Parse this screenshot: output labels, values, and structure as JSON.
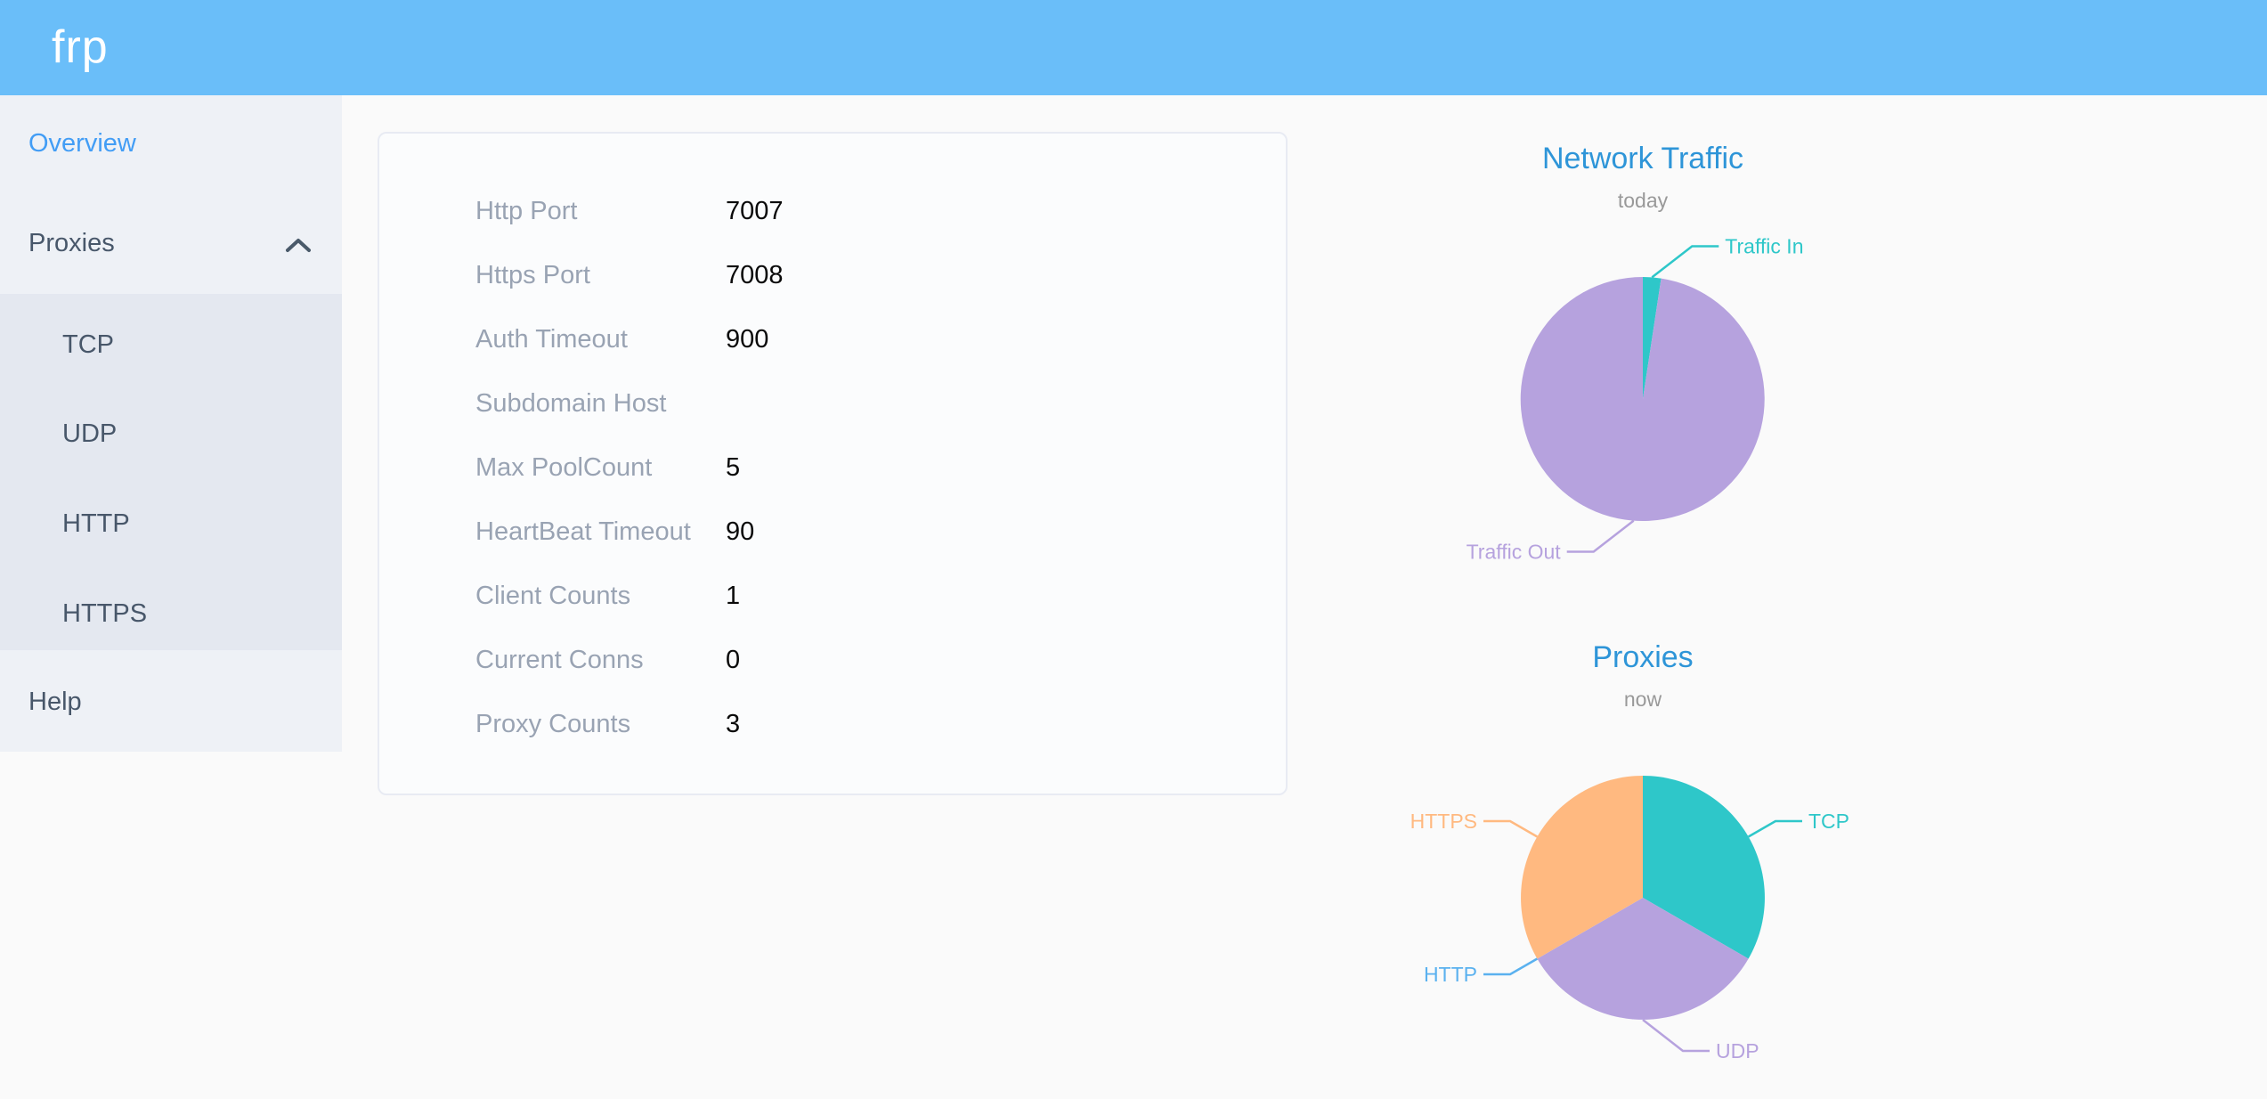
{
  "header": {
    "logo_text": "frp"
  },
  "sidebar": {
    "overview_label": "Overview",
    "proxies_label": "Proxies",
    "submenu": [
      {
        "label": "TCP"
      },
      {
        "label": "UDP"
      },
      {
        "label": "HTTP"
      },
      {
        "label": "HTTPS"
      }
    ],
    "help_label": "Help"
  },
  "server_info": {
    "rows": [
      {
        "label": "Http Port",
        "value": "7007"
      },
      {
        "label": "Https Port",
        "value": "7008"
      },
      {
        "label": "Auth Timeout",
        "value": "900"
      },
      {
        "label": "Subdomain Host",
        "value": ""
      },
      {
        "label": "Max PoolCount",
        "value": "5"
      },
      {
        "label": "HeartBeat Timeout",
        "value": "90"
      },
      {
        "label": "Client Counts",
        "value": "1"
      },
      {
        "label": "Current Conns",
        "value": "0"
      },
      {
        "label": "Proxy Counts",
        "value": "3"
      }
    ]
  },
  "chart_data": [
    {
      "type": "pie",
      "title": "Network Traffic",
      "subtitle": "today",
      "legend_position": "callout-labels",
      "series": [
        {
          "name": "Traffic In",
          "value": 2.4,
          "color": "#2ec7c9"
        },
        {
          "name": "Traffic Out",
          "value": 97.6,
          "color": "#b6a2de"
        }
      ],
      "note": "values are percent shares estimated from slice angles"
    },
    {
      "type": "pie",
      "title": "Proxies",
      "subtitle": "now",
      "legend_position": "callout-labels",
      "series": [
        {
          "name": "TCP",
          "value": 1,
          "color": "#2ec7c9"
        },
        {
          "name": "UDP",
          "value": 1,
          "color": "#b6a2de"
        },
        {
          "name": "HTTP",
          "value": 0,
          "color": "#5ab1ef"
        },
        {
          "name": "HTTPS",
          "value": 1,
          "color": "#ffb980"
        }
      ]
    }
  ],
  "theme": {
    "header_bg": "#6abef9",
    "active_menu_color": "#429df5",
    "menu_text_color": "#48576a",
    "chart_title_color": "#2e95d8",
    "label_gray": "#99a3b3"
  }
}
